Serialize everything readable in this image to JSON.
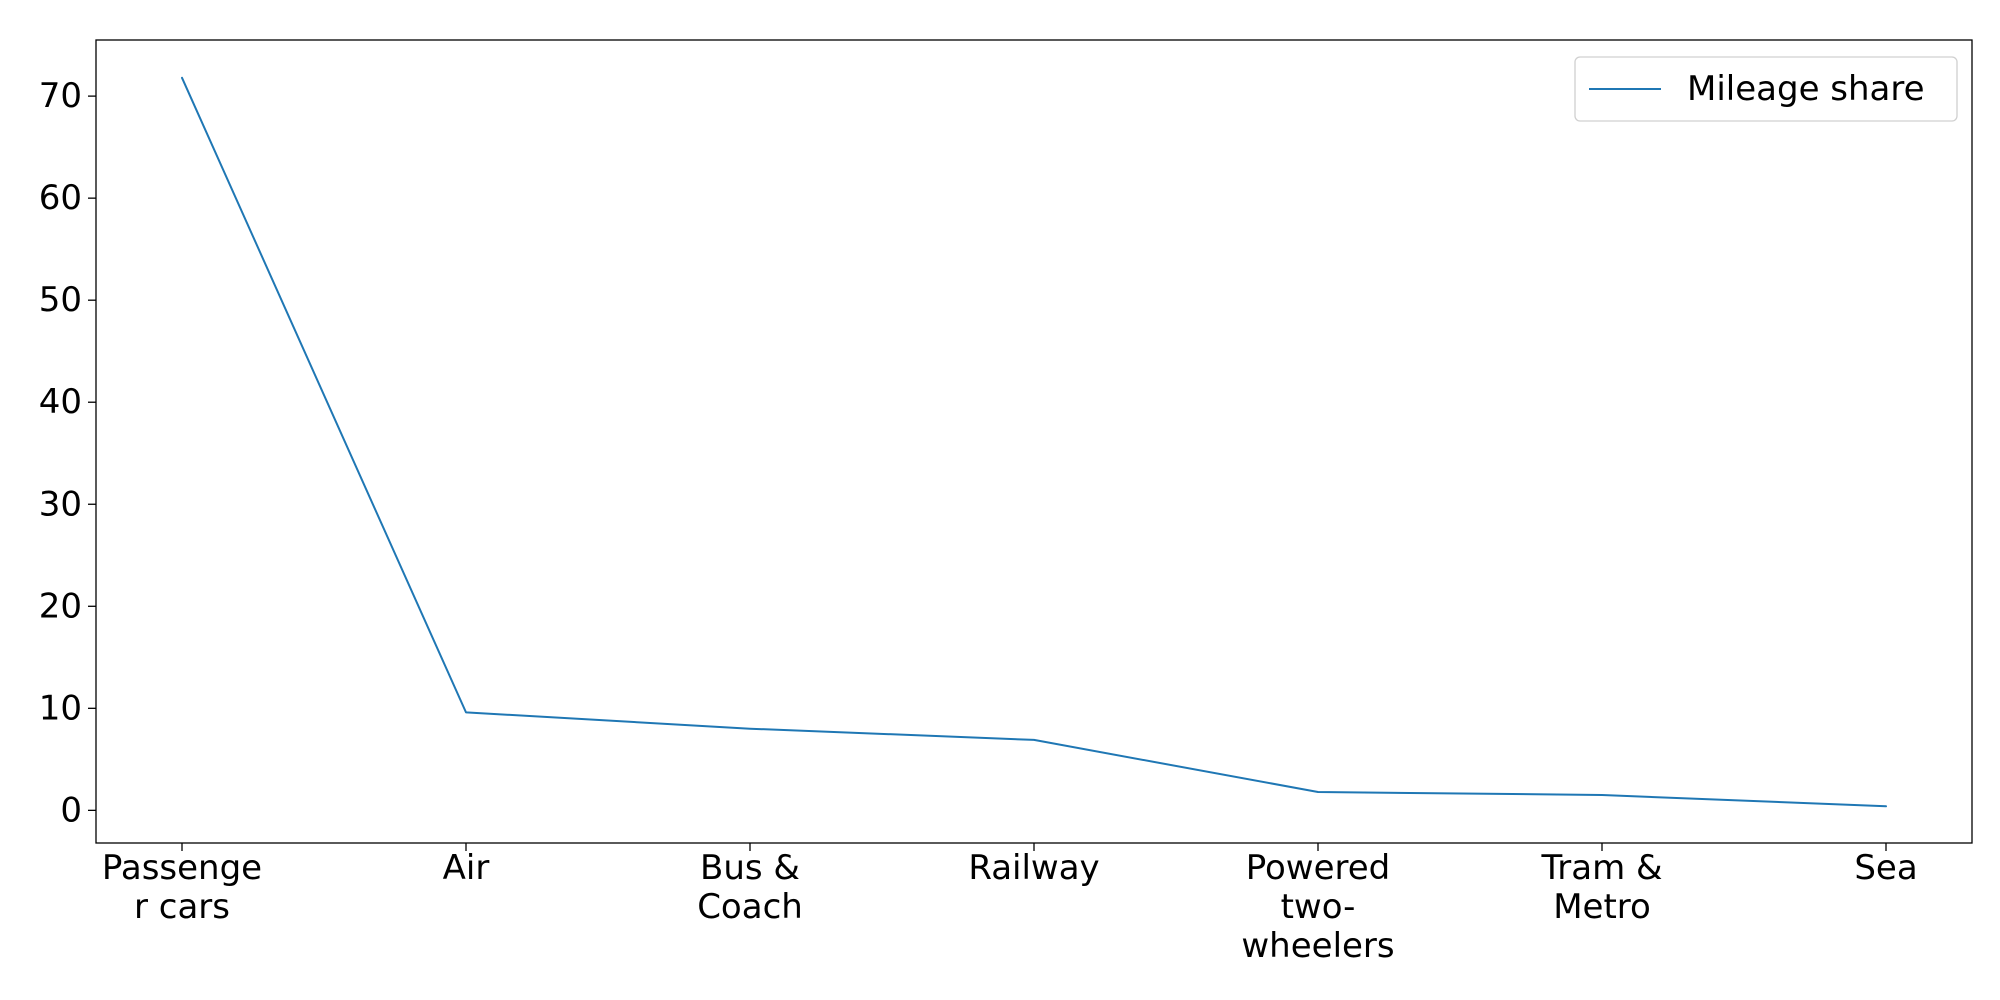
{
  "chart_data": {
    "type": "line",
    "categories": [
      [
        "Passenge",
        "r cars"
      ],
      [
        "Air"
      ],
      [
        "Bus &",
        "Coach"
      ],
      [
        "Railway"
      ],
      [
        "Powered",
        "two-",
        "wheelers"
      ],
      [
        "Tram &",
        "Metro"
      ],
      [
        "Sea"
      ]
    ],
    "series": [
      {
        "name": "Mileage share",
        "values": [
          71.8,
          9.6,
          8.0,
          6.9,
          1.8,
          1.5,
          0.4
        ],
        "color": "#1f77b4"
      }
    ],
    "ylim": [
      -3.2,
      75.5
    ],
    "yticks": [
      0,
      10,
      20,
      30,
      40,
      50,
      60,
      70
    ],
    "legend_position": "top-right",
    "grid": false
  }
}
